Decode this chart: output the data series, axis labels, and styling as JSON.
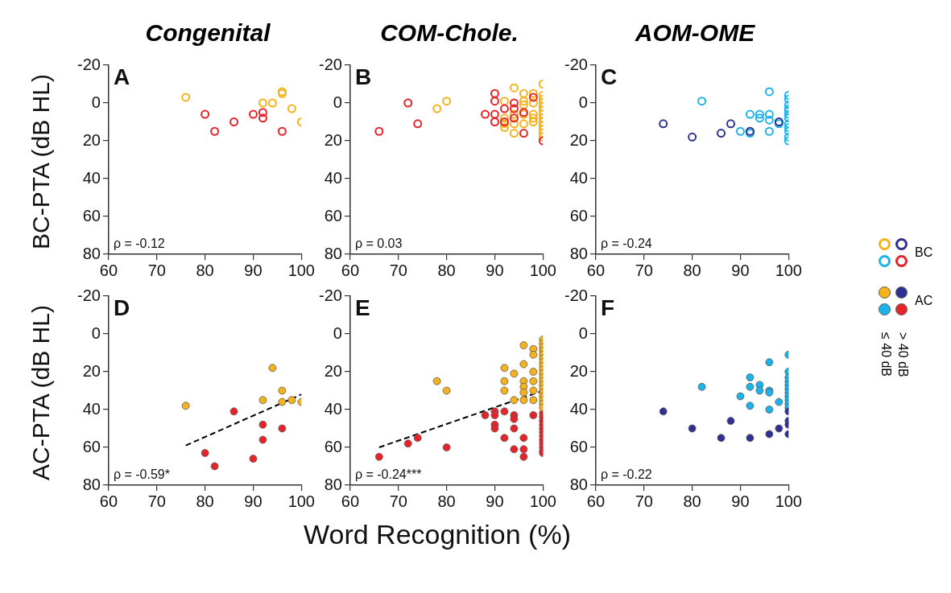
{
  "chart_data": [
    {
      "type": "scatter",
      "title": "Congenital",
      "ylabel": "BC-PTA (dB HL)",
      "annotations": [
        "A",
        "ρ = -0.12"
      ],
      "xlim": [
        60,
        100
      ],
      "xticks": [
        60,
        70,
        80,
        90,
        100
      ],
      "ylim": [
        80,
        -20
      ],
      "yticks": [
        -20,
        0,
        20,
        40,
        60,
        80
      ],
      "marker": "circle",
      "series": [
        {
          "color": "#f5b21b",
          "x": [
            76,
            92,
            94,
            96,
            96,
            98,
            100
          ],
          "values": [
            -3,
            0,
            0,
            -6,
            -5,
            3,
            10
          ]
        },
        {
          "color": "#e52329",
          "x": [
            80,
            82,
            86,
            90,
            92,
            92,
            96
          ],
          "values": [
            6,
            15,
            10,
            6,
            5,
            8,
            15
          ]
        }
      ]
    },
    {
      "type": "scatter",
      "title": "COM-Chole.",
      "annotations": [
        "B",
        "ρ = 0.03"
      ],
      "xlim": [
        60,
        100
      ],
      "xticks": [
        60,
        70,
        80,
        90,
        100
      ],
      "ylim": [
        80,
        -20
      ],
      "yticks": [
        -20,
        0,
        20,
        40,
        60,
        80
      ],
      "marker": "circle",
      "series": [
        {
          "color": "#e52329",
          "x": [
            66,
            72,
            74,
            88,
            90,
            90,
            90,
            90,
            92,
            92,
            94,
            94,
            94,
            96,
            96,
            98,
            100
          ],
          "values": [
            15,
            0,
            11,
            6,
            -5,
            -1,
            6,
            10,
            3,
            10,
            0,
            3,
            8,
            5,
            16,
            -3,
            20
          ]
        },
        {
          "color": "#f5b21b",
          "x": [
            78,
            80,
            92,
            92,
            92,
            92,
            94,
            94,
            94,
            94,
            96,
            96,
            96,
            96,
            96,
            98,
            98,
            98,
            98,
            98,
            100,
            100,
            100,
            100,
            100,
            100,
            100,
            100,
            100,
            100,
            100,
            100,
            100
          ],
          "values": [
            3,
            -1,
            -1,
            8,
            11,
            13,
            -8,
            6,
            11,
            16,
            -5,
            -1,
            1,
            6,
            11,
            -5,
            0,
            6,
            8,
            10,
            -10,
            -4,
            -2,
            0,
            2,
            4,
            6,
            8,
            10,
            12,
            14,
            16,
            18
          ]
        }
      ]
    },
    {
      "type": "scatter",
      "title": "AOM-OME",
      "annotations": [
        "C",
        "ρ = -0.24"
      ],
      "xlim": [
        60,
        100
      ],
      "xticks": [
        60,
        70,
        80,
        90,
        100
      ],
      "ylim": [
        80,
        -20
      ],
      "yticks": [
        -20,
        0,
        20,
        40,
        60,
        80
      ],
      "marker": "circle",
      "series": [
        {
          "color": "#2e3192",
          "x": [
            74,
            80,
            86,
            88,
            92,
            98
          ],
          "values": [
            11,
            18,
            16,
            11,
            15,
            10
          ]
        },
        {
          "color": "#1bb3ea",
          "x": [
            82,
            92,
            92,
            90,
            94,
            94,
            96,
            96,
            96,
            96,
            98,
            100,
            100,
            100,
            100,
            100,
            100,
            100,
            100,
            100,
            100,
            100,
            100
          ],
          "values": [
            -1,
            6,
            16,
            15,
            6,
            8,
            -6,
            6,
            9,
            15,
            11,
            -4,
            -2,
            1,
            3,
            4,
            6,
            8,
            11,
            13,
            15,
            18,
            20
          ]
        }
      ]
    },
    {
      "type": "scatter",
      "ylabel": "AC-PTA (dB HL)",
      "annotations": [
        "D",
        "ρ = -0.59*"
      ],
      "xlim": [
        60,
        100
      ],
      "xticks": [
        60,
        70,
        80,
        90,
        100
      ],
      "ylim": [
        80,
        -20
      ],
      "yticks": [
        -20,
        0,
        20,
        40,
        60,
        80
      ],
      "marker": "circle",
      "series": [
        {
          "color": "#f5b21b",
          "x": [
            76,
            92,
            94,
            96,
            96,
            98,
            100
          ],
          "values": [
            38,
            35,
            18,
            30,
            36,
            35,
            36
          ]
        },
        {
          "color": "#e52329",
          "x": [
            80,
            82,
            86,
            90,
            92,
            92,
            96
          ],
          "values": [
            63,
            70,
            41,
            66,
            48,
            56,
            50
          ]
        },
        {
          "type": "line",
          "color": "#000000",
          "line_style": "dashed",
          "marker": "none",
          "x": [
            76,
            100
          ],
          "values": [
            59,
            32
          ]
        }
      ]
    },
    {
      "type": "scatter",
      "xlabel": "Word Recognition (%)",
      "annotations": [
        "E",
        "ρ = -0.24***"
      ],
      "xlim": [
        60,
        100
      ],
      "xticks": [
        60,
        70,
        80,
        90,
        100
      ],
      "ylim": [
        80,
        -20
      ],
      "yticks": [
        -20,
        0,
        20,
        40,
        60,
        80
      ],
      "marker": "circle",
      "series": [
        {
          "color": "#f5b21b",
          "x": [
            78,
            80,
            92,
            92,
            92,
            94,
            94,
            96,
            96,
            96,
            96,
            96,
            96,
            98,
            98,
            98,
            98,
            98,
            98,
            100,
            100,
            100,
            100,
            100,
            100,
            100,
            100,
            100,
            100,
            100,
            100,
            100,
            100,
            100,
            100,
            100,
            100,
            100
          ],
          "values": [
            25,
            30,
            18,
            25,
            30,
            21,
            35,
            6,
            16,
            25,
            28,
            31,
            35,
            8,
            11,
            20,
            25,
            30,
            35,
            3,
            5,
            7,
            9,
            11,
            13,
            15,
            17,
            19,
            21,
            23,
            25,
            27,
            29,
            31,
            33,
            35,
            37,
            39
          ]
        },
        {
          "color": "#e52329",
          "x": [
            66,
            72,
            74,
            80,
            88,
            90,
            90,
            90,
            90,
            92,
            92,
            94,
            94,
            94,
            94,
            96,
            96,
            96,
            98,
            100,
            100,
            100,
            100,
            100,
            100,
            100,
            100,
            100,
            100,
            100,
            100
          ],
          "values": [
            65,
            58,
            55,
            60,
            43,
            41,
            43,
            48,
            50,
            41,
            55,
            43,
            45,
            50,
            61,
            55,
            61,
            65,
            43,
            42,
            44,
            46,
            48,
            50,
            52,
            54,
            56,
            58,
            60,
            62,
            63
          ]
        },
        {
          "type": "line",
          "color": "#000000",
          "line_style": "dashed",
          "marker": "none",
          "x": [
            66,
            100
          ],
          "values": [
            60,
            30
          ]
        }
      ]
    },
    {
      "type": "scatter",
      "annotations": [
        "F",
        "ρ = -0.22"
      ],
      "xlim": [
        60,
        100
      ],
      "xticks": [
        60,
        70,
        80,
        90,
        100
      ],
      "ylim": [
        80,
        -20
      ],
      "yticks": [
        -20,
        0,
        20,
        40,
        60,
        80
      ],
      "marker": "circle",
      "series": [
        {
          "color": "#2e3192",
          "x": [
            74,
            80,
            86,
            88,
            92,
            96,
            98,
            100,
            100,
            100,
            100
          ],
          "values": [
            41,
            50,
            55,
            46,
            55,
            53,
            50,
            41,
            46,
            48,
            53
          ]
        },
        {
          "color": "#1bb3ea",
          "x": [
            82,
            90,
            92,
            92,
            92,
            94,
            94,
            96,
            96,
            96,
            96,
            98,
            100,
            100,
            100,
            100,
            100,
            100,
            100,
            100,
            100,
            100,
            100
          ],
          "values": [
            28,
            33,
            23,
            28,
            38,
            27,
            30,
            15,
            30,
            31,
            40,
            36,
            11,
            20,
            23,
            25,
            27,
            29,
            31,
            33,
            35,
            37,
            39
          ]
        }
      ]
    },
    {
      "type": "other",
      "annotations": [
        "BC",
        "AC",
        "≤ 40 dB",
        "> 40 dB"
      ],
      "colors": [
        "#f5b21b",
        "#2e3192",
        "#1bb3ea",
        "#e52329"
      ]
    }
  ]
}
